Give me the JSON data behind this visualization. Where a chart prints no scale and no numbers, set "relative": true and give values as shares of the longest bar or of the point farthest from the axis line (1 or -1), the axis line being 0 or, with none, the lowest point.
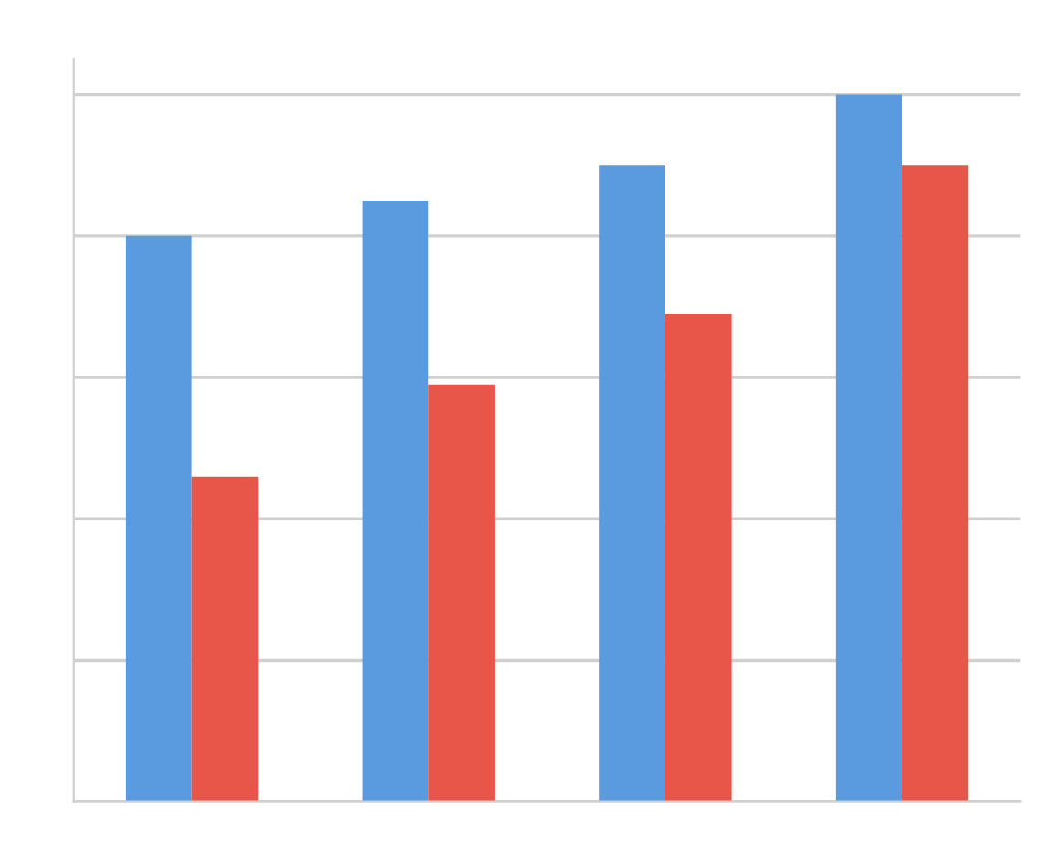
{
  "chart_data": {
    "type": "bar",
    "relative": true,
    "grid": "y",
    "legend": false,
    "categories": [
      null,
      null,
      null,
      null
    ],
    "series": [
      {
        "color": "#5a9be0",
        "values": [
          0.8,
          0.85,
          0.9,
          1.0
        ]
      },
      {
        "color": "#e8564a",
        "values": [
          0.46,
          0.59,
          0.69,
          0.9
        ]
      }
    ]
  }
}
